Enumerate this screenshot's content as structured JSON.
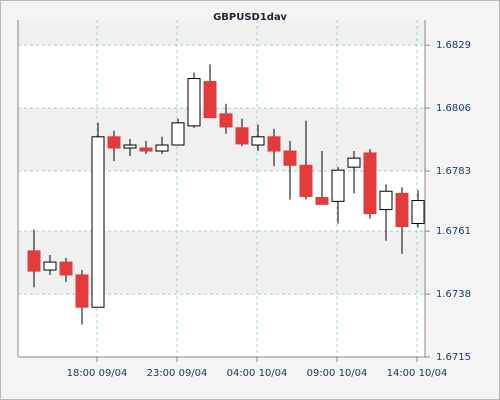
{
  "chart_data": {
    "type": "candlestick",
    "title": "GBPUSD1day",
    "categories": [
      null,
      null,
      null,
      null,
      "18:00 09/04",
      null,
      null,
      null,
      null,
      "23:00 09/04",
      null,
      null,
      null,
      null,
      "04:00 10/04",
      null,
      null,
      null,
      null,
      "09:00 10/04",
      null,
      null,
      null,
      null,
      "14:00 10/04"
    ],
    "open": [
      1.67538,
      1.67468,
      1.67497,
      1.6745,
      1.67332,
      1.67955,
      1.67914,
      1.67914,
      1.67903,
      1.67925,
      1.67995,
      1.68157,
      1.68039,
      1.67988,
      1.67925,
      1.67955,
      1.67903,
      1.67851,
      1.67733,
      1.67719,
      1.67844,
      1.67896,
      1.67689,
      1.67748,
      1.67638
    ],
    "high": [
      1.67616,
      1.67523,
      1.67512,
      1.67468,
      1.68006,
      1.67977,
      1.67947,
      1.6794,
      1.67955,
      1.68021,
      1.6819,
      1.6822,
      1.68076,
      1.68021,
      1.67999,
      1.67984,
      1.6794,
      1.68014,
      1.67903,
      1.67844,
      1.67903,
      1.6791,
      1.67781,
      1.6777,
      1.67759
    ],
    "low": [
      1.67405,
      1.6745,
      1.67424,
      1.67269,
      1.67332,
      1.67866,
      1.67885,
      1.67892,
      1.67892,
      1.67925,
      1.67988,
      1.68025,
      1.67966,
      1.67921,
      1.67903,
      1.67848,
      1.67726,
      1.67726,
      1.67708,
      1.67638,
      1.67748,
      1.67656,
      1.67575,
      1.67527,
      1.67623
    ],
    "close": [
      1.67464,
      1.67497,
      1.6745,
      1.67332,
      1.67955,
      1.67914,
      1.67925,
      1.67903,
      1.67925,
      1.68006,
      1.68168,
      1.68025,
      1.67991,
      1.67929,
      1.67955,
      1.67903,
      1.67851,
      1.67737,
      1.67708,
      1.67833,
      1.67877,
      1.67674,
      1.67756,
      1.67627,
      1.67722
    ],
    "up_color": "#ffffff",
    "down_color": "#e23b3b",
    "ylim": [
      1.6715,
      1.68382
    ],
    "yticks": [
      1.6715,
      1.6738,
      1.6761,
      1.6783,
      1.6806,
      1.6829
    ],
    "grid": true
  }
}
